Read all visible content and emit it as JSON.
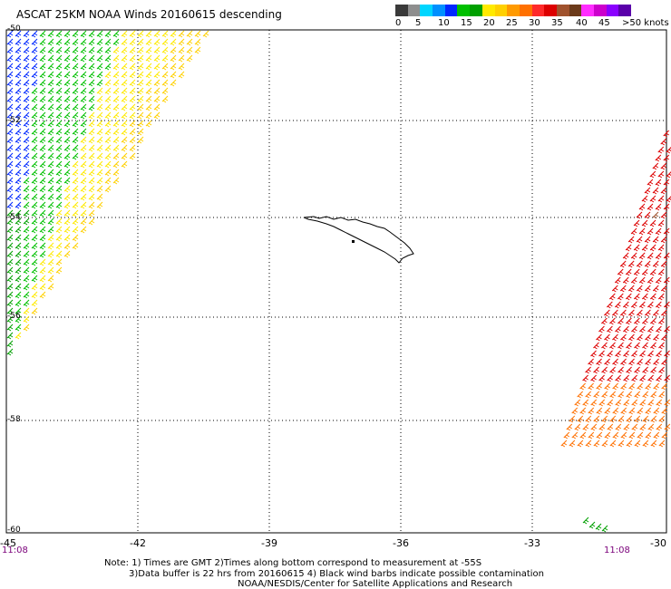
{
  "title": "ASCAT 25KM NOAA Winds 20160615 descending",
  "legend": {
    "colors": [
      "#3a3a3a",
      "#8e8e8e",
      "#00d6ff",
      "#0090ff",
      "#0028ff",
      "#00c000",
      "#00a000",
      "#ffea00",
      "#ffd000",
      "#ff9a00",
      "#ff7000",
      "#ff2a2a",
      "#dd0000",
      "#a0522d",
      "#6b3a1a",
      "#ff2cff",
      "#cc00cc",
      "#8a00ff",
      "#5a00aa"
    ],
    "labels": [
      "0",
      "5",
      "10",
      "15",
      "20",
      "25",
      "30",
      "35",
      "40",
      "45",
      ">50 knots"
    ]
  },
  "axes": {
    "lon_labels": [
      "-45",
      "-42",
      "-39",
      "-36",
      "-33",
      "-30"
    ],
    "lat_labels": [
      "-50",
      "-52",
      "-54",
      "-56",
      "-58",
      "-60"
    ]
  },
  "times": {
    "left": "11:08",
    "right": "11:08"
  },
  "notes": {
    "line1": "Note: 1) Times are GMT 2)Times along bottom correspond to measurement at -55S",
    "line2": "3)Data buffer is 22 hrs from 20160615 4) Black wind barbs indicate possible contamination",
    "line3": "NOAA/NESDIS/Center for Satellite Applications and Research"
  }
}
